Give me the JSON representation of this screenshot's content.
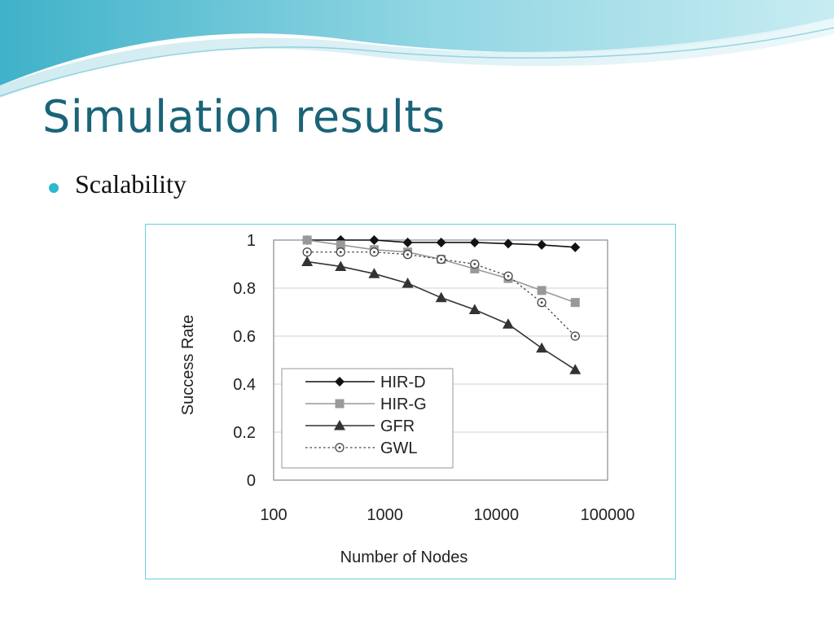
{
  "slide": {
    "title": "Simulation results",
    "bullet": "Scalability"
  },
  "colors": {
    "title": "#1a6478",
    "bullet": "#2bb8d1",
    "frame": "#66cfe0"
  },
  "chart_data": {
    "type": "line",
    "xlabel": "Number of Nodes",
    "ylabel": "Success Rate",
    "xscale": "log",
    "xlim": [
      100,
      100000
    ],
    "ylim": [
      0,
      1
    ],
    "xticks": [
      100,
      1000,
      10000,
      100000
    ],
    "xtick_labels": [
      "100",
      "1000",
      "10000",
      "100000"
    ],
    "yticks": [
      0,
      0.2,
      0.4,
      0.6,
      0.8,
      1
    ],
    "ytick_labels": [
      "0",
      "0.2",
      "0.4",
      "0.6",
      "0.8",
      "1"
    ],
    "grid": true,
    "legend_position": "lower-left",
    "x": [
      200,
      400,
      800,
      1600,
      3200,
      6400,
      12800,
      25600,
      51200
    ],
    "series": [
      {
        "name": "HIR-D",
        "values": [
          1.0,
          1.0,
          1.0,
          0.99,
          0.99,
          0.99,
          0.985,
          0.98,
          0.97
        ],
        "color": "#111111",
        "marker": "diamond",
        "dash": "solid"
      },
      {
        "name": "HIR-G",
        "values": [
          1.0,
          0.98,
          0.96,
          0.95,
          0.92,
          0.88,
          0.84,
          0.79,
          0.74
        ],
        "color": "#999999",
        "marker": "square",
        "dash": "solid"
      },
      {
        "name": "GFR",
        "values": [
          0.91,
          0.89,
          0.86,
          0.82,
          0.76,
          0.71,
          0.65,
          0.55,
          0.46
        ],
        "color": "#333333",
        "marker": "triangle",
        "dash": "solid"
      },
      {
        "name": "GWL",
        "values": [
          0.95,
          0.95,
          0.95,
          0.94,
          0.92,
          0.9,
          0.85,
          0.74,
          0.6
        ],
        "color": "#444444",
        "marker": "circle-dot",
        "dash": "dotted"
      }
    ]
  }
}
